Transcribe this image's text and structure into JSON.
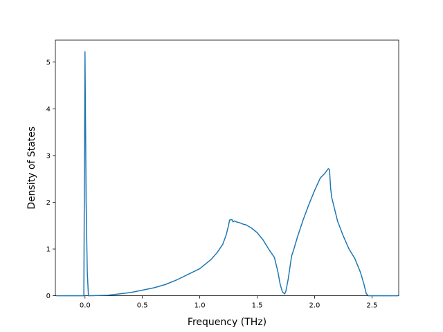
{
  "chart_data": {
    "type": "line",
    "title": "",
    "xlabel": "Frequency (THz)",
    "ylabel": "Density of States",
    "xlim": [
      -0.258,
      2.733
    ],
    "ylim": [
      0,
      5.47
    ],
    "xticks": [
      0.0,
      0.5,
      1.0,
      1.5,
      2.0,
      2.5
    ],
    "xtick_labels": [
      "0.0",
      "0.5",
      "1.0",
      "1.5",
      "2.0",
      "2.5"
    ],
    "yticks": [
      0,
      1,
      2,
      3,
      4,
      5
    ],
    "ytick_labels": [
      "0",
      "1",
      "2",
      "3",
      "4",
      "5"
    ],
    "grid": false,
    "legend": "none",
    "line_color": "#1f77b4",
    "series": [
      {
        "x": [
          -0.25,
          -0.02,
          -0.01,
          0.0,
          0.01,
          0.02,
          0.03,
          0.2,
          0.3,
          0.4,
          0.5,
          0.6,
          0.7,
          0.8,
          0.9,
          1.0,
          1.1,
          1.15,
          1.2,
          1.23,
          1.25,
          1.26,
          1.28,
          1.29,
          1.3,
          1.32,
          1.35,
          1.38,
          1.4,
          1.45,
          1.5,
          1.55,
          1.6,
          1.65,
          1.68,
          1.7,
          1.72,
          1.74,
          1.75,
          1.77,
          1.8,
          1.82,
          1.85,
          1.9,
          1.95,
          2.0,
          2.05,
          2.09,
          2.12,
          2.13,
          2.14,
          2.15,
          2.2,
          2.25,
          2.3,
          2.35,
          2.4,
          2.43,
          2.45,
          2.46,
          2.47,
          2.5,
          2.73
        ],
        "y": [
          0,
          0,
          0,
          5.22,
          2.0,
          0.5,
          0,
          0.01,
          0.04,
          0.07,
          0.12,
          0.17,
          0.24,
          0.34,
          0.46,
          0.58,
          0.78,
          0.92,
          1.1,
          1.3,
          1.5,
          1.62,
          1.63,
          1.58,
          1.6,
          1.58,
          1.56,
          1.53,
          1.52,
          1.45,
          1.35,
          1.2,
          1.0,
          0.82,
          0.52,
          0.25,
          0.08,
          0.04,
          0.1,
          0.35,
          0.85,
          1.0,
          1.25,
          1.62,
          1.95,
          2.25,
          2.52,
          2.62,
          2.72,
          2.7,
          2.3,
          2.1,
          1.6,
          1.28,
          1.0,
          0.8,
          0.5,
          0.25,
          0.05,
          0.02,
          0,
          0,
          0
        ]
      }
    ]
  }
}
